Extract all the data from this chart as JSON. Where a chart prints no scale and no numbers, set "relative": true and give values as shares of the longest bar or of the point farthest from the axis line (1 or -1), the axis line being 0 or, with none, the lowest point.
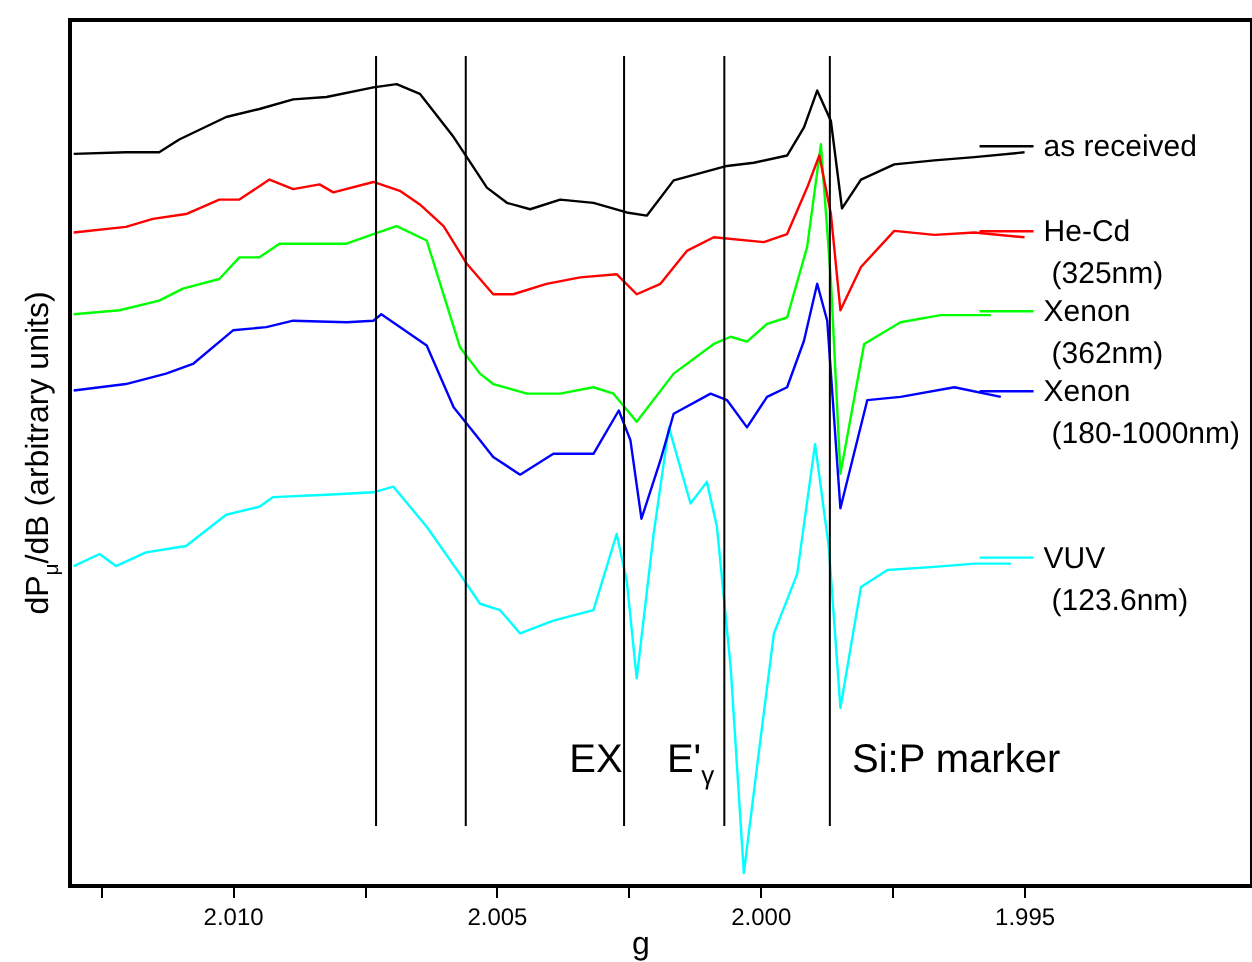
{
  "chart_data": {
    "type": "line",
    "xlabel": "g",
    "ylabel": "dP$_{μ}$/dB (arbitrary units)",
    "relative": true,
    "legend": "right",
    "marker": "none",
    "xlim": [
      2.0131,
      1.9907
    ],
    "xticks": [
      {
        "value": 2.0125,
        "label": null
      },
      {
        "value": 2.01,
        "label": "2.010"
      },
      {
        "value": 2.0075,
        "label": null
      },
      2.005,
      {
        "value": 2.0025,
        "label": null
      },
      {
        "value": 2,
        "label": "2.000"
      },
      {
        "value": 1.9975,
        "label": null
      },
      1.995
    ],
    "series": [
      {
        "name": "as received",
        "color": "#000000",
        "x": [
          2.01303,
          2.01204,
          2.01141,
          2.01103,
          2.01014,
          2.00951,
          2.00887,
          2.00824,
          2.00735,
          2.00691,
          2.00647,
          2.00583,
          2.00533,
          2.0052,
          2.00482,
          2.00438,
          2.00381,
          2.00318,
          2.00255,
          2.00217,
          2.00166,
          2.00065,
          2.00014,
          1.99951,
          1.99919,
          1.99894,
          1.99868,
          1.99847,
          1.99811,
          1.99748,
          1.99672,
          1.99596,
          1.99501
        ],
        "values": [
          0.913,
          0.915,
          0.915,
          0.931,
          0.959,
          0.969,
          0.981,
          0.984,
          0.996,
          1,
          0.988,
          0.934,
          0.884,
          0.871,
          0.852,
          0.844,
          0.856,
          0.852,
          0.84,
          0.836,
          0.88,
          0.898,
          0.902,
          0.911,
          0.946,
          0.992,
          0.954,
          0.845,
          0.881,
          0.9,
          0.905,
          0.909,
          0.915
        ]
      },
      {
        "name": "He-Cd (325nm)",
        "color": "#ff0000",
        "x": [
          2.01303,
          2.01204,
          2.01153,
          2.0109,
          2.01027,
          2.00989,
          2.00932,
          2.00887,
          2.00837,
          2.00811,
          2.00735,
          2.00685,
          2.00647,
          2.00602,
          2.00558,
          2.00508,
          2.0047,
          2.00407,
          2.00343,
          2.00274,
          2.00236,
          2.00191,
          2.00141,
          2.0009,
          1.99995,
          1.99951,
          1.99913,
          1.9989,
          1.99868,
          1.9985,
          1.99811,
          1.99748,
          1.99672,
          1.99596,
          1.99501
        ],
        "values": [
          0.815,
          0.822,
          0.832,
          0.838,
          0.856,
          0.856,
          0.881,
          0.869,
          0.875,
          0.865,
          0.878,
          0.867,
          0.85,
          0.823,
          0.776,
          0.738,
          0.738,
          0.751,
          0.759,
          0.763,
          0.738,
          0.751,
          0.792,
          0.809,
          0.803,
          0.813,
          0.871,
          0.911,
          0.838,
          0.718,
          0.772,
          0.817,
          0.812,
          0.815,
          0.809
        ]
      },
      {
        "name": "Xenon (362nm)",
        "color": "#00ff00",
        "x": [
          2.01303,
          2.01216,
          2.01141,
          2.01096,
          2.01027,
          2.00989,
          2.00951,
          2.00913,
          2.00786,
          2.00735,
          2.00691,
          2.00634,
          2.00571,
          2.00533,
          2.00508,
          2.00444,
          2.00381,
          2.00318,
          2.0028,
          2.00236,
          2.00166,
          2.0009,
          2.00058,
          2.00027,
          1.99989,
          1.99951,
          1.99913,
          1.99887,
          1.99868,
          1.9985,
          1.99805,
          1.99736,
          1.9966,
          1.99565
        ],
        "values": [
          0.713,
          0.718,
          0.73,
          0.745,
          0.757,
          0.784,
          0.784,
          0.801,
          0.801,
          0.813,
          0.823,
          0.805,
          0.672,
          0.639,
          0.626,
          0.614,
          0.614,
          0.622,
          0.614,
          0.579,
          0.639,
          0.676,
          0.685,
          0.679,
          0.701,
          0.709,
          0.797,
          0.925,
          0.755,
          0.514,
          0.676,
          0.703,
          0.712,
          0.712
        ]
      },
      {
        "name": "Xenon (180-1000nm)",
        "color": "#0000ff",
        "x": [
          2.01303,
          2.01204,
          2.01128,
          2.01077,
          2.01001,
          2.00938,
          2.00887,
          2.00786,
          2.00735,
          2.0072,
          2.00634,
          2.00583,
          2.00533,
          2.00508,
          2.00457,
          2.00394,
          2.00318,
          2.0027,
          2.00248,
          2.00227,
          2.00191,
          2.00166,
          2.00096,
          2.00065,
          2.00027,
          1.99989,
          1.99951,
          1.99919,
          1.99894,
          1.99875,
          1.9985,
          1.99799,
          1.99736,
          1.99634,
          1.99546
        ],
        "values": [
          0.618,
          0.626,
          0.639,
          0.651,
          0.693,
          0.697,
          0.705,
          0.703,
          0.705,
          0.713,
          0.674,
          0.597,
          0.556,
          0.535,
          0.513,
          0.539,
          0.539,
          0.593,
          0.556,
          0.458,
          0.531,
          0.589,
          0.614,
          0.606,
          0.572,
          0.61,
          0.622,
          0.68,
          0.751,
          0.705,
          0.471,
          0.606,
          0.61,
          0.622,
          0.61
        ]
      },
      {
        "name": "VUV (123.6nm)",
        "color": "#00ffff",
        "x": [
          2.01303,
          2.01254,
          2.01223,
          2.01166,
          2.0109,
          2.01014,
          2.00951,
          2.00925,
          2.00824,
          2.00735,
          2.00697,
          2.00634,
          2.00571,
          2.00533,
          2.00495,
          2.00457,
          2.00394,
          2.00318,
          2.00274,
          2.00255,
          2.00236,
          2.00204,
          2.00175,
          2.00134,
          2.00103,
          2.00084,
          2.00058,
          2.00033,
          2.00008,
          1.99976,
          1.99932,
          1.99898,
          1.99872,
          1.9985,
          1.99811,
          1.99761,
          1.99672,
          1.99596,
          1.99527
        ],
        "values": [
          0.399,
          0.414,
          0.399,
          0.416,
          0.424,
          0.463,
          0.473,
          0.485,
          0.488,
          0.491,
          0.498,
          0.448,
          0.389,
          0.352,
          0.344,
          0.315,
          0.331,
          0.344,
          0.439,
          0.381,
          0.259,
          0.439,
          0.572,
          0.477,
          0.504,
          0.448,
          0.273,
          0.016,
          0.149,
          0.315,
          0.389,
          0.551,
          0.423,
          0.222,
          0.373,
          0.394,
          0.398,
          0.402,
          0.402
        ]
      }
    ],
    "ref_lines": [
      {
        "axis": "x",
        "value": 2.0073,
        "color": "#000000"
      },
      {
        "axis": "x",
        "value": 2.0056,
        "color": "#000000"
      },
      {
        "axis": "x",
        "value": 2.0026,
        "color": "#000000"
      },
      {
        "axis": "x",
        "value": 2.0007,
        "color": "#000000"
      },
      {
        "axis": "x",
        "value": 1.9987,
        "color": "#000000"
      }
    ],
    "annotations": [
      "EX",
      "E'$_{γ}$",
      "Si:P marker"
    ]
  }
}
